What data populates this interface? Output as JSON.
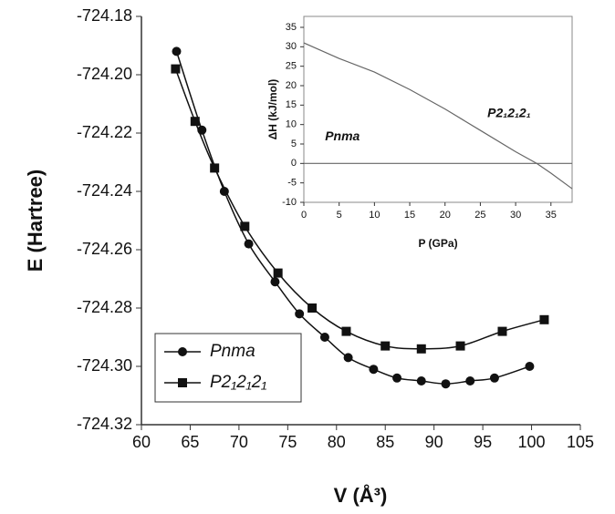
{
  "chart_data": [
    {
      "type": "line",
      "xlabel": "V (Å³)",
      "ylabel": "E (Hartree)",
      "xlim": [
        60,
        105
      ],
      "xticks": [
        60,
        65,
        70,
        75,
        80,
        85,
        90,
        95,
        100,
        105
      ],
      "ylim": [
        -724.32,
        -724.18
      ],
      "yticks": [
        -724.32,
        {
          "value": -724.3,
          "label": "-724.30"
        },
        -724.28,
        -724.26,
        -724.24,
        -724.22,
        {
          "value": -724.2,
          "label": "-724.20"
        },
        -724.18
      ],
      "legend": "lower left",
      "series": [
        {
          "name": "Pnma",
          "color": "#111111",
          "marker": "circle",
          "x": [
            63.6,
            66.2,
            68.5,
            71,
            73.7,
            76.2,
            78.8,
            81.2,
            83.8,
            86.2,
            88.7,
            91.2,
            93.7,
            96.2,
            99.8
          ],
          "values": [
            -724.192,
            -724.219,
            -724.24,
            -724.258,
            -724.271,
            -724.282,
            -724.29,
            -724.297,
            -724.301,
            -724.304,
            -724.305,
            -724.306,
            -724.305,
            -724.304,
            -724.3
          ]
        },
        {
          "name": "P2₁2₁2₁",
          "color": "#111111",
          "marker": "square",
          "x": [
            63.5,
            65.5,
            67.5,
            70.6,
            74,
            77.5,
            81,
            85,
            88.7,
            92.7,
            97,
            101.3
          ],
          "values": [
            -724.198,
            -724.216,
            -724.232,
            -724.252,
            -724.268,
            -724.28,
            -724.288,
            -724.293,
            -724.294,
            -724.293,
            -724.288,
            -724.284
          ]
        }
      ]
    },
    {
      "type": "line",
      "xlabel": "P (GPa)",
      "ylabel": "ΔH (kJ/mol)",
      "xlim": [
        0,
        38
      ],
      "xticks": [
        0,
        5,
        10,
        15,
        20,
        25,
        30,
        35
      ],
      "ylim": [
        -10,
        35
      ],
      "yticks": [
        -10,
        -5,
        0,
        5,
        10,
        15,
        20,
        25,
        30,
        35
      ],
      "series": [
        {
          "name": "Pnma",
          "color": "#666666",
          "x": [
            0,
            38
          ],
          "values": [
            0,
            0
          ]
        },
        {
          "name": "P2₁2₁2₁",
          "color": "#666666",
          "x": [
            0,
            5,
            10,
            15,
            20,
            25,
            30,
            33,
            35,
            38
          ],
          "values": [
            31,
            27,
            23.5,
            19,
            14,
            8.5,
            3,
            0,
            -2.5,
            -6.5
          ]
        }
      ]
    }
  ]
}
